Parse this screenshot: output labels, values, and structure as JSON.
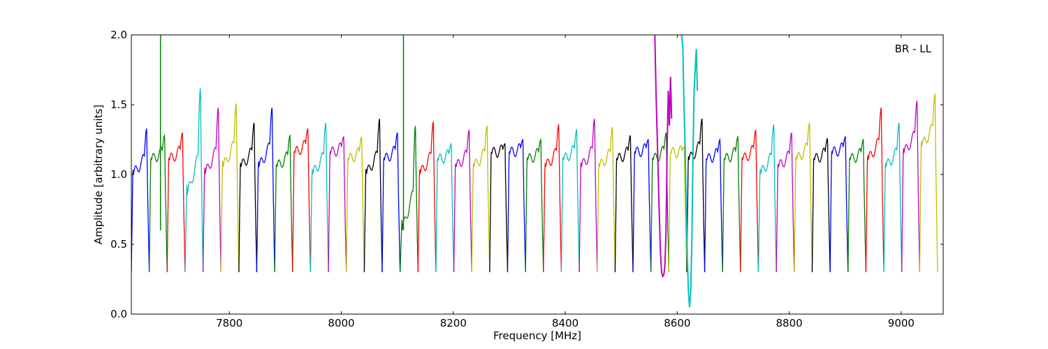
{
  "chart_data": {
    "type": "line",
    "title": "",
    "annotation": "BR - LL",
    "xlabel": "Frequency [MHz]",
    "ylabel": "Amplitude [arbitrary units]",
    "xlim": [
      7625,
      9075
    ],
    "ylim": [
      0.0,
      2.0
    ],
    "xticks": [
      7800,
      8000,
      8200,
      8400,
      8600,
      8800,
      9000
    ],
    "yticks": [
      0.0,
      0.5,
      1.0,
      1.5,
      2.0
    ],
    "grid": false,
    "legend": "none",
    "color_cycle": [
      "#0000ff",
      "#007f00",
      "#ff0000",
      "#00bfbf",
      "#bf00bf",
      "#bfbf00",
      "#000000"
    ],
    "channel_width_mhz": 32,
    "channels": [
      {
        "start": 7625,
        "color": "#0000ff",
        "peak": 1.33,
        "mid": 1.0
      },
      {
        "start": 7657,
        "color": "#007f00",
        "peak": 1.28,
        "mid": 1.1
      },
      {
        "start": 7689,
        "color": "#ff0000",
        "peak": 1.3,
        "mid": 1.1
      },
      {
        "start": 7721,
        "color": "#00bfbf",
        "peak": 1.62,
        "mid": 0.85
      },
      {
        "start": 7753,
        "color": "#bf00bf",
        "peak": 1.48,
        "mid": 1.0
      },
      {
        "start": 7785,
        "color": "#bfbf00",
        "peak": 1.51,
        "mid": 1.05
      },
      {
        "start": 7817,
        "color": "#000000",
        "peak": 1.37,
        "mid": 1.05
      },
      {
        "start": 7849,
        "color": "#0000ff",
        "peak": 1.48,
        "mid": 1.05
      },
      {
        "start": 7881,
        "color": "#007f00",
        "peak": 1.28,
        "mid": 1.05
      },
      {
        "start": 7913,
        "color": "#ff0000",
        "peak": 1.33,
        "mid": 1.15
      },
      {
        "start": 7945,
        "color": "#00bfbf",
        "peak": 1.37,
        "mid": 1.0
      },
      {
        "start": 7977,
        "color": "#bf00bf",
        "peak": 1.27,
        "mid": 1.15
      },
      {
        "start": 8009,
        "color": "#bfbf00",
        "peak": 1.27,
        "mid": 1.1
      },
      {
        "start": 8041,
        "color": "#000000",
        "peak": 1.4,
        "mid": 1.0
      },
      {
        "start": 8073,
        "color": "#0000ff",
        "peak": 1.3,
        "mid": 1.1
      },
      {
        "start": 8105,
        "color": "#007f00",
        "peak": 1.35,
        "mid": 0.6
      },
      {
        "start": 8137,
        "color": "#ff0000",
        "peak": 1.38,
        "mid": 1.0
      },
      {
        "start": 8169,
        "color": "#00bfbf",
        "peak": 1.22,
        "mid": 1.1
      },
      {
        "start": 8201,
        "color": "#bf00bf",
        "peak": 1.32,
        "mid": 1.05
      },
      {
        "start": 8233,
        "color": "#bfbf00",
        "peak": 1.35,
        "mid": 1.05
      },
      {
        "start": 8265,
        "color": "#000000",
        "peak": 1.22,
        "mid": 1.15
      },
      {
        "start": 8297,
        "color": "#0000ff",
        "peak": 1.25,
        "mid": 1.15
      },
      {
        "start": 8329,
        "color": "#007f00",
        "peak": 1.25,
        "mid": 1.1
      },
      {
        "start": 8361,
        "color": "#ff0000",
        "peak": 1.36,
        "mid": 1.05
      },
      {
        "start": 8393,
        "color": "#00bfbf",
        "peak": 1.32,
        "mid": 1.1
      },
      {
        "start": 8425,
        "color": "#bf00bf",
        "peak": 1.4,
        "mid": 1.05
      },
      {
        "start": 8457,
        "color": "#bfbf00",
        "peak": 1.34,
        "mid": 1.05
      },
      {
        "start": 8489,
        "color": "#000000",
        "peak": 1.28,
        "mid": 1.1
      },
      {
        "start": 8521,
        "color": "#0000ff",
        "peak": 1.25,
        "mid": 1.15
      },
      {
        "start": 8553,
        "color": "#007f00",
        "peak": 1.3,
        "mid": 1.1
      },
      {
        "start": 8585,
        "color": "#bfbf00",
        "peak": 1.2,
        "mid": 1.15
      },
      {
        "start": 8617,
        "color": "#000000",
        "peak": 1.4,
        "mid": 1.1
      },
      {
        "start": 8649,
        "color": "#0000ff",
        "peak": 1.25,
        "mid": 1.1
      },
      {
        "start": 8681,
        "color": "#007f00",
        "peak": 1.27,
        "mid": 1.1
      },
      {
        "start": 8713,
        "color": "#ff0000",
        "peak": 1.32,
        "mid": 1.1
      },
      {
        "start": 8745,
        "color": "#00bfbf",
        "peak": 1.36,
        "mid": 1.0
      },
      {
        "start": 8777,
        "color": "#bf00bf",
        "peak": 1.3,
        "mid": 1.05
      },
      {
        "start": 8809,
        "color": "#bfbf00",
        "peak": 1.37,
        "mid": 1.1
      },
      {
        "start": 8841,
        "color": "#000000",
        "peak": 1.26,
        "mid": 1.1
      },
      {
        "start": 8873,
        "color": "#0000ff",
        "peak": 1.27,
        "mid": 1.15
      },
      {
        "start": 8905,
        "color": "#007f00",
        "peak": 1.25,
        "mid": 1.1
      },
      {
        "start": 8937,
        "color": "#ff0000",
        "peak": 1.48,
        "mid": 1.1
      },
      {
        "start": 8969,
        "color": "#00bfbf",
        "peak": 1.37,
        "mid": 1.05
      },
      {
        "start": 9001,
        "color": "#bf00bf",
        "peak": 1.53,
        "mid": 1.15
      },
      {
        "start": 9033,
        "color": "#bfbf00",
        "peak": 1.58,
        "mid": 1.2
      }
    ],
    "spikes": [
      {
        "x": 7677,
        "y": 2.0,
        "color": "#007f00"
      },
      {
        "x": 8111,
        "y": 2.0,
        "color": "#007f00"
      }
    ],
    "overlays": [
      {
        "name": "",
        "color": "#bf00bf",
        "x": [
          8560,
          8562,
          8564,
          8566,
          8568,
          8570,
          8572,
          8574,
          8576,
          8578,
          8580,
          8582,
          8584,
          8586,
          8588,
          8590
        ],
        "y": [
          2.0,
          1.6,
          1.3,
          1.0,
          0.7,
          0.45,
          0.3,
          0.27,
          0.28,
          0.35,
          0.6,
          1.2,
          1.6,
          1.35,
          1.7,
          1.4
        ]
      },
      {
        "name": "",
        "color": "#00bfbf",
        "x": [
          8608,
          8610,
          8612,
          8614,
          8616,
          8618,
          8620,
          8622,
          8624,
          8626,
          8628,
          8630,
          8632,
          8634,
          8636
        ],
        "y": [
          2.0,
          1.9,
          1.5,
          1.2,
          0.8,
          0.4,
          0.15,
          0.05,
          0.15,
          0.5,
          1.1,
          1.6,
          1.75,
          1.9,
          1.6
        ]
      }
    ]
  }
}
